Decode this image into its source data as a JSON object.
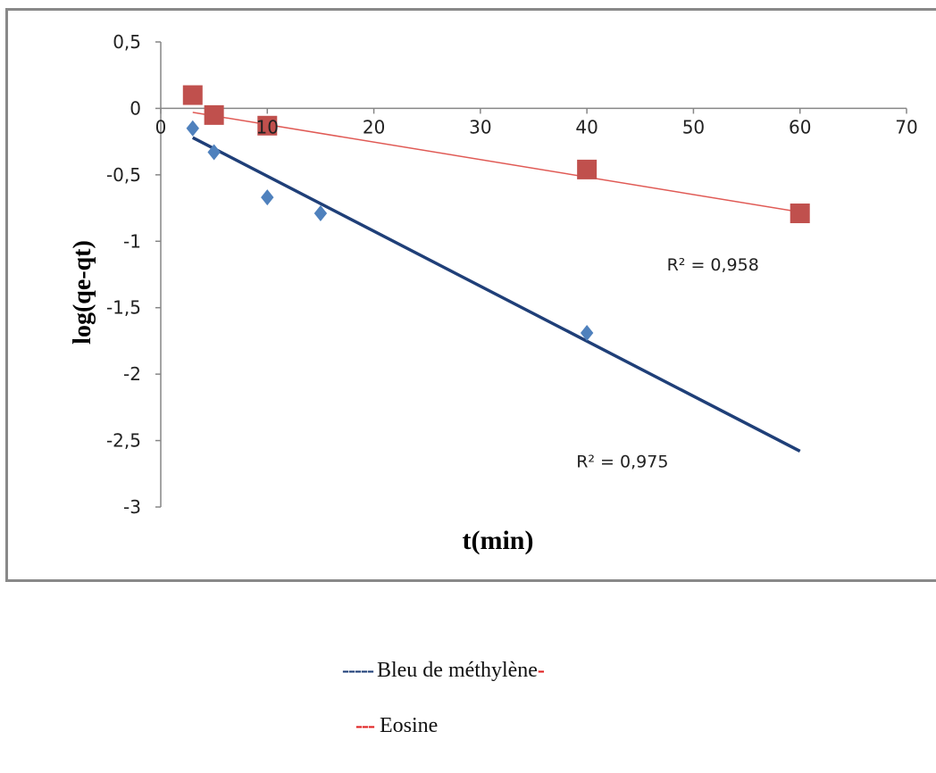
{
  "chart_data": {
    "type": "scatter",
    "xlabel": "t(min)",
    "ylabel": "log(qe-qt)",
    "xlim": [
      0,
      70
    ],
    "ylim": [
      -3,
      0.5
    ],
    "x_ticks": [
      "0",
      "10",
      "20",
      "30",
      "40",
      "50",
      "60",
      "70"
    ],
    "y_ticks": [
      "0,5",
      "0",
      "-0,5",
      "-1",
      "-1,5",
      "-2",
      "-2,5",
      "-3"
    ],
    "grid": false,
    "series": [
      {
        "name": "Bleu de méthylène",
        "marker": "diamond",
        "color": "#4f81bd",
        "trend_color": "#1f3f78",
        "points": [
          [
            3,
            -0.15
          ],
          [
            5,
            -0.33
          ],
          [
            10,
            -0.67
          ],
          [
            15,
            -0.79
          ],
          [
            40,
            -1.69
          ]
        ],
        "trendline": [
          [
            3,
            -0.22
          ],
          [
            60,
            -2.58
          ]
        ],
        "r2_label": "R² = 0,975",
        "r2_anchor": [
          39,
          -2.7
        ]
      },
      {
        "name": "Eosine",
        "marker": "square",
        "color": "#c0504d",
        "trend_color": "#e05a55",
        "points": [
          [
            3,
            0.1
          ],
          [
            5,
            -0.05
          ],
          [
            10,
            -0.13
          ],
          [
            40,
            -0.46
          ],
          [
            60,
            -0.79
          ]
        ],
        "trendline": [
          [
            3,
            -0.03
          ],
          [
            60,
            -0.78
          ]
        ],
        "r2_label": "R² = 0,958",
        "r2_anchor": [
          47.5,
          -1.22
        ]
      }
    ]
  },
  "legend": {
    "entries": [
      {
        "dash": "-----",
        "label": "Bleu de méthylène",
        "suffix": "-",
        "dash_color": "#1f3f78",
        "suffix_color": "#e02020"
      },
      {
        "dash": "---",
        "label": "Eosine",
        "dash_color": "#e02020"
      }
    ]
  }
}
